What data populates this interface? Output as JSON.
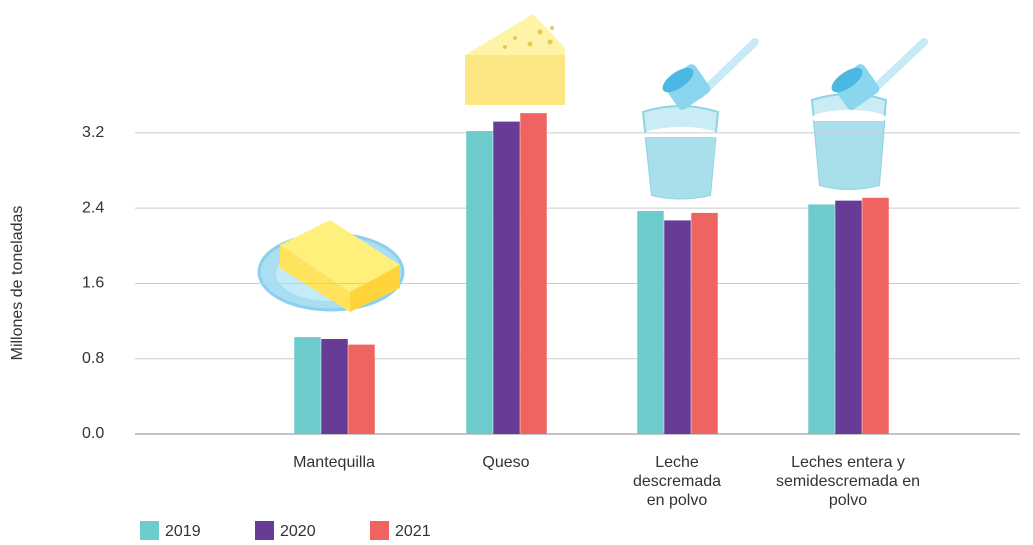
{
  "chart_data": {
    "type": "bar",
    "y_label": "Millones de toneladas",
    "categories": [
      "Mantequilla",
      "Queso",
      "Leche descremada en polvo",
      "Leches entera y semidescremada en polvo"
    ],
    "series": [
      {
        "name": "2019",
        "color": "#6dcbcb",
        "values": [
          1.03,
          3.22,
          2.37,
          2.44
        ]
      },
      {
        "name": "2020",
        "color": "#673c97",
        "values": [
          1.01,
          3.32,
          2.27,
          2.48
        ]
      },
      {
        "name": "2021",
        "color": "#ef6461",
        "values": [
          0.95,
          3.41,
          2.35,
          2.51
        ]
      }
    ],
    "ylim": [
      0,
      4.4
    ],
    "yticks": [
      {
        "value": 0,
        "label": "0.0"
      },
      0.8,
      1.6,
      2.4,
      3.2
    ],
    "grid": true
  }
}
